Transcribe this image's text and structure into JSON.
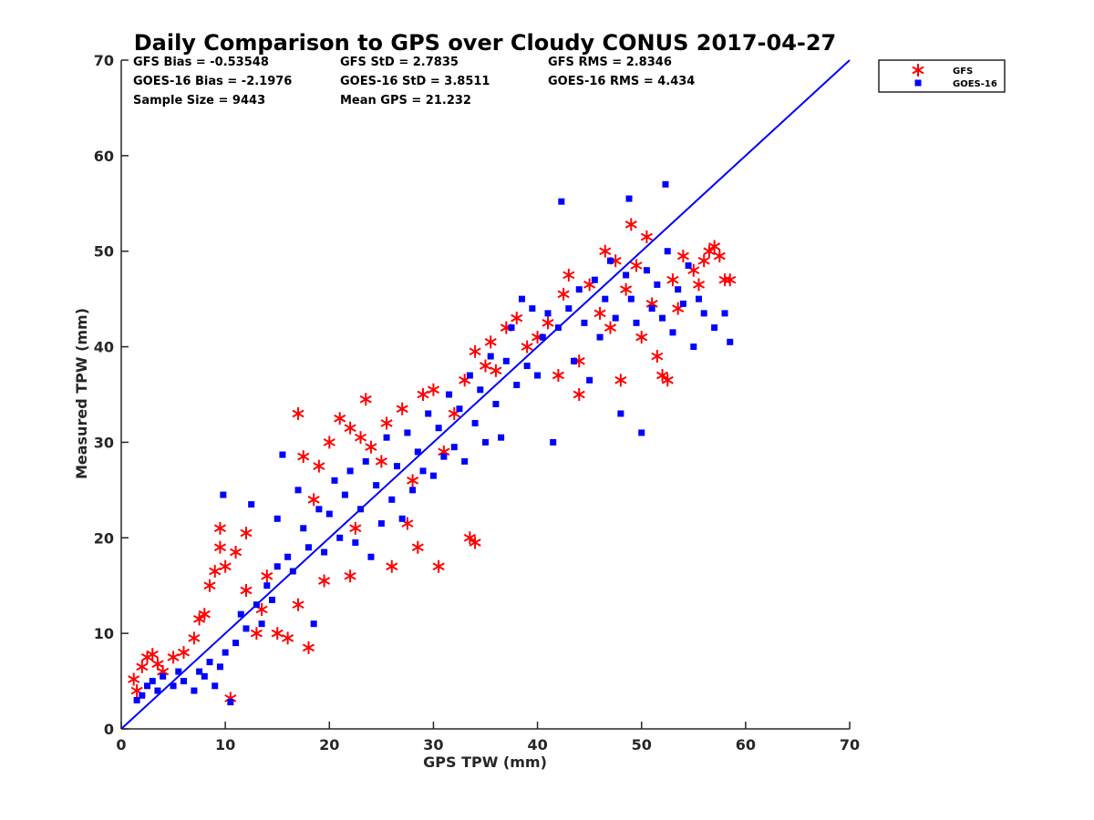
{
  "chart_data": {
    "type": "scatter",
    "title": "Daily Comparison to GPS over Cloudy CONUS 2017-04-27",
    "xlabel": "GPS TPW (mm)",
    "ylabel": "Measured TPW (mm)",
    "xlim": [
      0,
      70
    ],
    "ylim": [
      0,
      70
    ],
    "xticks": [
      0,
      10,
      20,
      30,
      40,
      50,
      60,
      70
    ],
    "yticks": [
      0,
      10,
      20,
      30,
      40,
      50,
      60,
      70
    ],
    "grid": false,
    "legend_position": "top-right outside",
    "reference_line": {
      "x": [
        0,
        70
      ],
      "y": [
        0,
        70
      ],
      "color": "#0000ff"
    },
    "stats": [
      [
        "GFS Bias = -0.53548",
        "GFS StD = 2.7835",
        "GFS RMS = 2.8346"
      ],
      [
        "GOES-16 Bias = -2.1976",
        "GOES-16 StD = 3.8511",
        "GOES-16 RMS = 4.434"
      ],
      [
        "Sample Size = 9443",
        "Mean GPS = 21.232"
      ]
    ],
    "series": [
      {
        "name": "GFS",
        "marker": "asterisk",
        "color": "#ff0000",
        "points": [
          [
            1.2,
            5.2
          ],
          [
            1.5,
            4.0
          ],
          [
            2.0,
            6.5
          ],
          [
            2.5,
            7.5
          ],
          [
            3.0,
            7.8
          ],
          [
            3.5,
            6.8
          ],
          [
            4.0,
            6.0
          ],
          [
            5.0,
            7.5
          ],
          [
            6.0,
            8.0
          ],
          [
            7.0,
            9.5
          ],
          [
            7.5,
            11.5
          ],
          [
            8.0,
            12.0
          ],
          [
            8.5,
            15.0
          ],
          [
            9.0,
            16.5
          ],
          [
            9.5,
            21.0
          ],
          [
            9.5,
            19.0
          ],
          [
            10.0,
            17.0
          ],
          [
            10.5,
            3.2
          ],
          [
            11.0,
            18.5
          ],
          [
            12.0,
            20.5
          ],
          [
            12.0,
            14.5
          ],
          [
            13.0,
            10.0
          ],
          [
            13.5,
            12.5
          ],
          [
            14.0,
            16.0
          ],
          [
            15.0,
            10.0
          ],
          [
            16.0,
            9.5
          ],
          [
            17.0,
            13.0
          ],
          [
            17.5,
            28.5
          ],
          [
            17.0,
            33.0
          ],
          [
            18.0,
            8.5
          ],
          [
            18.5,
            24.0
          ],
          [
            19.0,
            27.5
          ],
          [
            19.5,
            15.5
          ],
          [
            20.0,
            30.0
          ],
          [
            21.0,
            32.5
          ],
          [
            22.0,
            31.5
          ],
          [
            22.5,
            21.0
          ],
          [
            22.0,
            16.0
          ],
          [
            23.0,
            30.5
          ],
          [
            23.5,
            34.5
          ],
          [
            24.0,
            29.5
          ],
          [
            25.0,
            28.0
          ],
          [
            25.5,
            32.0
          ],
          [
            26.0,
            17.0
          ],
          [
            27.0,
            33.5
          ],
          [
            27.5,
            21.5
          ],
          [
            28.0,
            26.0
          ],
          [
            28.5,
            19.0
          ],
          [
            29.0,
            35.0
          ],
          [
            30.0,
            35.5
          ],
          [
            30.5,
            17.0
          ],
          [
            31.0,
            29.0
          ],
          [
            32.0,
            33.0
          ],
          [
            33.0,
            36.5
          ],
          [
            33.5,
            20.0
          ],
          [
            34.0,
            39.5
          ],
          [
            34.0,
            19.5
          ],
          [
            35.0,
            38.0
          ],
          [
            35.5,
            40.5
          ],
          [
            36.0,
            37.5
          ],
          [
            37.0,
            42.0
          ],
          [
            38.0,
            43.0
          ],
          [
            39.0,
            40.0
          ],
          [
            40.0,
            41.0
          ],
          [
            41.0,
            42.5
          ],
          [
            42.0,
            37.0
          ],
          [
            42.5,
            45.5
          ],
          [
            43.0,
            47.5
          ],
          [
            44.0,
            38.5
          ],
          [
            44.0,
            35.0
          ],
          [
            45.0,
            46.5
          ],
          [
            46.0,
            43.5
          ],
          [
            46.5,
            50.0
          ],
          [
            47.0,
            42.0
          ],
          [
            47.5,
            49.0
          ],
          [
            48.0,
            36.5
          ],
          [
            48.5,
            46.0
          ],
          [
            49.0,
            52.8
          ],
          [
            49.5,
            48.5
          ],
          [
            50.0,
            41.0
          ],
          [
            50.5,
            51.5
          ],
          [
            51.0,
            44.5
          ],
          [
            51.5,
            39.0
          ],
          [
            52.0,
            37.0
          ],
          [
            52.5,
            36.5
          ],
          [
            53.0,
            47.0
          ],
          [
            53.5,
            44.0
          ],
          [
            54.0,
            49.5
          ],
          [
            55.0,
            48.0
          ],
          [
            55.5,
            46.5
          ],
          [
            56.0,
            49.0
          ],
          [
            56.5,
            50.0
          ],
          [
            57.0,
            50.5
          ],
          [
            57.5,
            49.5
          ],
          [
            58.0,
            47.0
          ],
          [
            58.5,
            47.0
          ]
        ]
      },
      {
        "name": "GOES-16",
        "marker": "square",
        "color": "#0000ff",
        "points": [
          [
            1.5,
            3.0
          ],
          [
            2.0,
            3.5
          ],
          [
            2.5,
            4.5
          ],
          [
            3.0,
            5.0
          ],
          [
            3.5,
            4.0
          ],
          [
            4.0,
            5.5
          ],
          [
            5.0,
            4.5
          ],
          [
            5.5,
            6.0
          ],
          [
            6.0,
            5.0
          ],
          [
            7.0,
            4.0
          ],
          [
            7.5,
            6.0
          ],
          [
            8.0,
            5.5
          ],
          [
            8.5,
            7.0
          ],
          [
            9.0,
            4.5
          ],
          [
            9.5,
            6.5
          ],
          [
            9.8,
            24.5
          ],
          [
            10.0,
            8.0
          ],
          [
            10.5,
            2.8
          ],
          [
            11.0,
            9.0
          ],
          [
            11.5,
            12.0
          ],
          [
            12.0,
            10.5
          ],
          [
            12.5,
            23.5
          ],
          [
            13.0,
            13.0
          ],
          [
            13.5,
            11.0
          ],
          [
            14.0,
            15.0
          ],
          [
            14.5,
            13.5
          ],
          [
            15.0,
            17.0
          ],
          [
            15.0,
            22.0
          ],
          [
            15.5,
            28.7
          ],
          [
            16.0,
            18.0
          ],
          [
            16.5,
            16.5
          ],
          [
            17.0,
            25.0
          ],
          [
            17.5,
            21.0
          ],
          [
            18.0,
            19.0
          ],
          [
            18.5,
            11.0
          ],
          [
            19.0,
            23.0
          ],
          [
            19.5,
            18.5
          ],
          [
            20.0,
            22.5
          ],
          [
            20.5,
            26.0
          ],
          [
            21.0,
            20.0
          ],
          [
            21.5,
            24.5
          ],
          [
            22.0,
            27.0
          ],
          [
            22.5,
            19.5
          ],
          [
            23.0,
            23.0
          ],
          [
            23.5,
            28.0
          ],
          [
            24.0,
            18.0
          ],
          [
            24.5,
            25.5
          ],
          [
            25.0,
            21.5
          ],
          [
            25.5,
            30.5
          ],
          [
            26.0,
            24.0
          ],
          [
            26.5,
            27.5
          ],
          [
            27.0,
            22.0
          ],
          [
            27.5,
            31.0
          ],
          [
            28.0,
            25.0
          ],
          [
            28.5,
            29.0
          ],
          [
            29.0,
            27.0
          ],
          [
            29.5,
            33.0
          ],
          [
            30.0,
            26.5
          ],
          [
            30.5,
            31.5
          ],
          [
            31.0,
            28.5
          ],
          [
            31.5,
            35.0
          ],
          [
            32.0,
            29.5
          ],
          [
            32.5,
            33.5
          ],
          [
            33.0,
            28.0
          ],
          [
            33.5,
            37.0
          ],
          [
            34.0,
            32.0
          ],
          [
            34.5,
            35.5
          ],
          [
            35.0,
            30.0
          ],
          [
            35.5,
            39.0
          ],
          [
            36.0,
            34.0
          ],
          [
            36.5,
            30.5
          ],
          [
            37.0,
            38.5
          ],
          [
            37.5,
            42.0
          ],
          [
            38.0,
            36.0
          ],
          [
            38.5,
            45.0
          ],
          [
            39.0,
            38.0
          ],
          [
            39.5,
            44.0
          ],
          [
            40.0,
            37.0
          ],
          [
            40.5,
            41.0
          ],
          [
            41.0,
            43.5
          ],
          [
            41.5,
            30.0
          ],
          [
            42.0,
            42.0
          ],
          [
            42.3,
            55.2
          ],
          [
            43.0,
            44.0
          ],
          [
            43.5,
            38.5
          ],
          [
            44.0,
            46.0
          ],
          [
            44.5,
            42.5
          ],
          [
            45.0,
            36.5
          ],
          [
            45.5,
            47.0
          ],
          [
            46.0,
            41.0
          ],
          [
            46.5,
            45.0
          ],
          [
            47.0,
            49.0
          ],
          [
            47.5,
            43.0
          ],
          [
            48.0,
            33.0
          ],
          [
            48.5,
            47.5
          ],
          [
            48.8,
            55.5
          ],
          [
            49.0,
            45.0
          ],
          [
            49.5,
            42.5
          ],
          [
            50.0,
            31.0
          ],
          [
            50.5,
            48.0
          ],
          [
            51.0,
            44.0
          ],
          [
            51.5,
            46.5
          ],
          [
            52.0,
            43.0
          ],
          [
            52.3,
            57.0
          ],
          [
            52.5,
            50.0
          ],
          [
            53.0,
            41.5
          ],
          [
            53.5,
            46.0
          ],
          [
            54.0,
            44.5
          ],
          [
            54.5,
            48.5
          ],
          [
            55.0,
            40.0
          ],
          [
            55.5,
            45.0
          ],
          [
            56.0,
            43.5
          ],
          [
            57.0,
            42.0
          ],
          [
            58.0,
            43.5
          ],
          [
            58.5,
            40.5
          ]
        ]
      }
    ]
  }
}
